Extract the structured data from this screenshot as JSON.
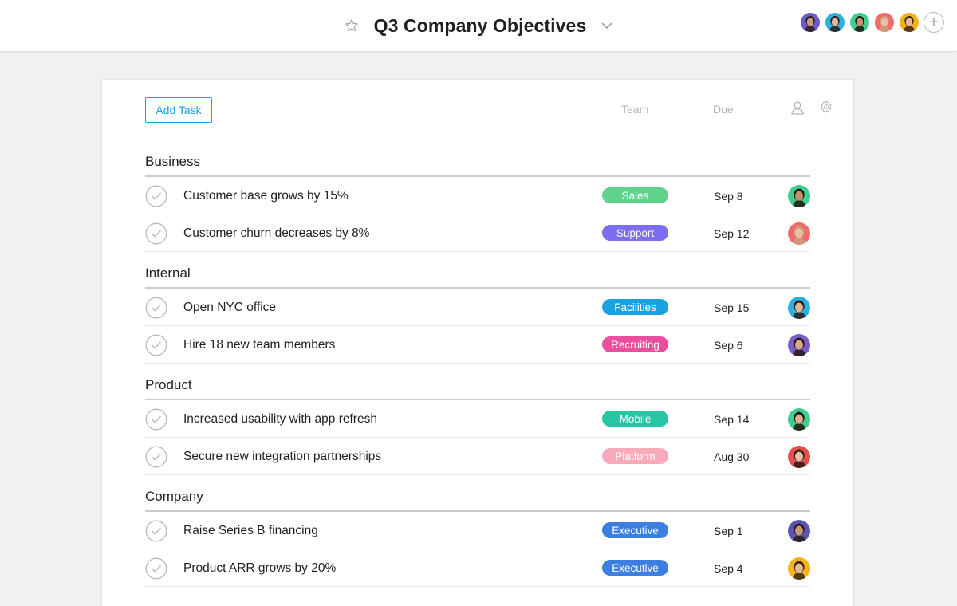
{
  "header": {
    "title": "Q3 Company Objectives",
    "star_icon": "star-icon",
    "dropdown_icon": "chevron-down-icon",
    "members": [
      {
        "name": "member-1",
        "bg": "#6a5acd",
        "skin": "#c89a78",
        "hair": "#2b1d14"
      },
      {
        "name": "member-2",
        "bg": "#2bb0e0",
        "skin": "#e2b49a",
        "hair": "#2a1a10"
      },
      {
        "name": "member-3",
        "bg": "#3ecf8e",
        "skin": "#c8916e",
        "hair": "#1d1410"
      },
      {
        "name": "member-4",
        "bg": "#f06a6a",
        "skin": "#e8bfa6",
        "hair": "#c9a07a"
      },
      {
        "name": "member-5",
        "bg": "#f5b21a",
        "skin": "#e6b89a",
        "hair": "#3a2416"
      }
    ],
    "add_member_label": "+"
  },
  "toolbar": {
    "add_task_label": "Add Task",
    "team_col": "Team",
    "due_col": "Due"
  },
  "sections": [
    {
      "name": "Business",
      "tasks": [
        {
          "name": "Customer base grows by 15%",
          "team": "Sales",
          "team_color": "#5fd38d",
          "due": "Sep 8",
          "avatar_bg": "#3ecf8e",
          "avatar_skin": "#c8916e",
          "avatar_hair": "#1d1410"
        },
        {
          "name": "Customer churn decreases by 8%",
          "team": "Support",
          "team_color": "#7a6ff0",
          "due": "Sep 12",
          "avatar_bg": "#f06a6a",
          "avatar_skin": "#e8bfa6",
          "avatar_hair": "#c9a07a"
        }
      ]
    },
    {
      "name": "Internal",
      "tasks": [
        {
          "name": "Open NYC office",
          "team": "Facilities",
          "team_color": "#1aa1e0",
          "due": "Sep 15",
          "avatar_bg": "#2bb0e0",
          "avatar_skin": "#e2b49a",
          "avatar_hair": "#2a1a10"
        },
        {
          "name": "Hire 18 new team members",
          "team": "Recruiting",
          "team_color": "#ea4e9d",
          "due": "Sep 6",
          "avatar_bg": "#7a5cc9",
          "avatar_skin": "#d8a88a",
          "avatar_hair": "#24160e"
        }
      ]
    },
    {
      "name": "Product",
      "tasks": [
        {
          "name": "Increased usability with app refresh",
          "team": "Mobile",
          "team_color": "#26c6a4",
          "due": "Sep 14",
          "avatar_bg": "#3ecf8e",
          "avatar_skin": "#e0b090",
          "avatar_hair": "#1d1410"
        },
        {
          "name": "Secure new integration partnerships",
          "team": "Platform",
          "team_color": "#f9aaba",
          "due": "Aug 30",
          "avatar_bg": "#e05050",
          "avatar_skin": "#e8bfa6",
          "avatar_hair": "#2a1a10"
        }
      ]
    },
    {
      "name": "Company",
      "tasks": [
        {
          "name": "Raise Series B financing",
          "team": "Executive",
          "team_color": "#3d7fe0",
          "due": "Sep 1",
          "avatar_bg": "#5b54b0",
          "avatar_skin": "#c89a78",
          "avatar_hair": "#2b1d14"
        },
        {
          "name": "Product ARR grows by 20%",
          "team": "Executive",
          "team_color": "#3d7fe0",
          "due": "Sep 4",
          "avatar_bg": "#f5b21a",
          "avatar_skin": "#e6b89a",
          "avatar_hair": "#3a2416"
        }
      ]
    }
  ]
}
